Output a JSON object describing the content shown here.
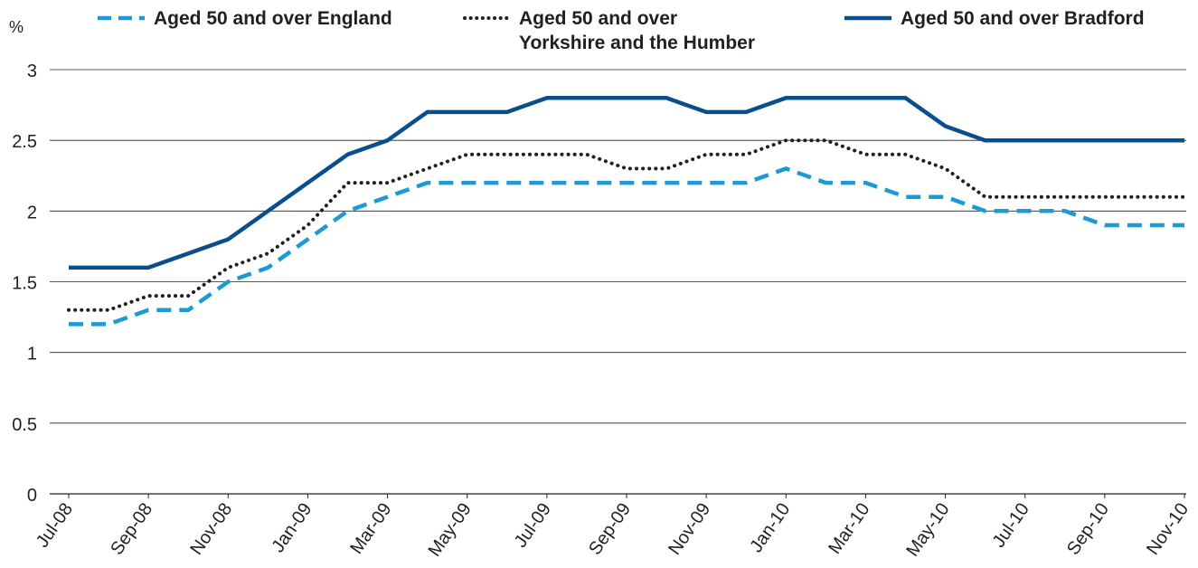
{
  "chart_data": {
    "type": "line",
    "ylabel": "%",
    "xlabel": "",
    "ylim": [
      0,
      3
    ],
    "yticks": [
      "0",
      "0.5",
      "1",
      "1.5",
      "2",
      "2.5",
      "3"
    ],
    "x_tick_labels": [
      "Jul-08",
      "Sep-08",
      "Nov-08",
      "Jan-09",
      "Mar-09",
      "May-09",
      "Jul-09",
      "Sep-09",
      "Nov-09",
      "Jan-10",
      "Mar-10",
      "May-10",
      "Jul-10",
      "Sep-10",
      "Nov-10"
    ],
    "x": [
      "Jul-08",
      "Aug-08",
      "Sep-08",
      "Oct-08",
      "Nov-08",
      "Dec-08",
      "Jan-09",
      "Feb-09",
      "Mar-09",
      "Apr-09",
      "May-09",
      "Jun-09",
      "Jul-09",
      "Aug-09",
      "Sep-09",
      "Oct-09",
      "Nov-09",
      "Dec-09",
      "Jan-10",
      "Feb-10",
      "Mar-10",
      "Apr-10",
      "May-10",
      "Jun-10",
      "Jul-10",
      "Aug-10",
      "Sep-10",
      "Oct-10",
      "Nov-10"
    ],
    "grid": "horizontal",
    "legend_position": "top",
    "series": [
      {
        "name": "Aged 50 and over England",
        "style": "dashed",
        "color": "#1c9ad6",
        "values": [
          1.2,
          1.2,
          1.3,
          1.3,
          1.5,
          1.6,
          1.8,
          2.0,
          2.1,
          2.2,
          2.2,
          2.2,
          2.2,
          2.2,
          2.2,
          2.2,
          2.2,
          2.2,
          2.3,
          2.2,
          2.2,
          2.1,
          2.1,
          2.0,
          2.0,
          2.0,
          1.9,
          1.9,
          1.9
        ]
      },
      {
        "name": "Aged 50 and over Yorkshire and the Humber",
        "name_lines": [
          "Aged 50 and over",
          "Yorkshire and the Humber"
        ],
        "style": "dotted",
        "color": "#231f20",
        "values": [
          1.3,
          1.3,
          1.4,
          1.4,
          1.6,
          1.7,
          1.9,
          2.2,
          2.2,
          2.3,
          2.4,
          2.4,
          2.4,
          2.4,
          2.3,
          2.3,
          2.4,
          2.4,
          2.5,
          2.5,
          2.4,
          2.4,
          2.3,
          2.1,
          2.1,
          2.1,
          2.1,
          2.1,
          2.1
        ]
      },
      {
        "name": "Aged 50 and over Bradford",
        "style": "solid",
        "color": "#0a4f8c",
        "values": [
          1.6,
          1.6,
          1.6,
          1.7,
          1.8,
          2.0,
          2.2,
          2.4,
          2.5,
          2.7,
          2.7,
          2.7,
          2.8,
          2.8,
          2.8,
          2.8,
          2.7,
          2.7,
          2.8,
          2.8,
          2.8,
          2.8,
          2.6,
          2.5,
          2.5,
          2.5,
          2.5,
          2.5,
          2.5
        ]
      }
    ]
  }
}
